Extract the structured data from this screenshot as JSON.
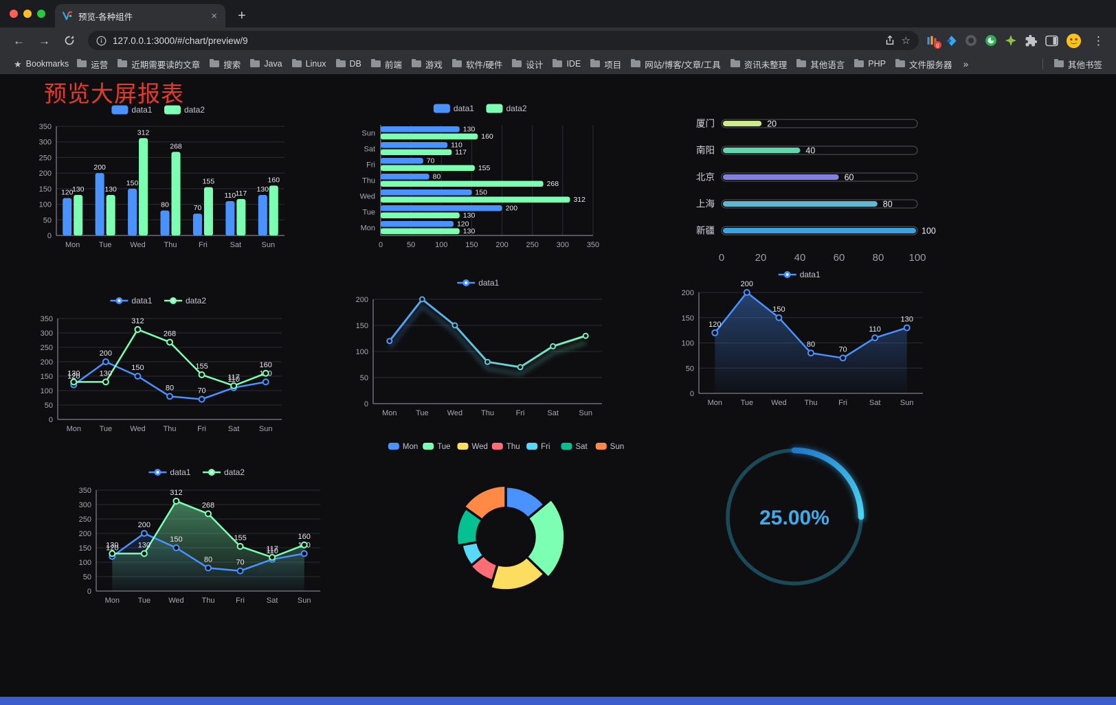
{
  "browser": {
    "tab_title": "预览-各种组件",
    "url": "127.0.0.1:3000/#/chart/preview/9",
    "extension_badge": "g",
    "bookmarks_bar": {
      "label": "Bookmarks",
      "folders": [
        "运营",
        "近期需要读的文章",
        "搜索",
        "Java",
        "Linux",
        "DB",
        "前端",
        "游戏",
        "软件/硬件",
        "设计",
        "IDE",
        "项目",
        "网站/博客/文章/工具",
        "资讯未整理",
        "其他语言",
        "PHP",
        "文件服务器"
      ],
      "overflow": "»",
      "other": "其他书签"
    }
  },
  "icons": {
    "back": "←",
    "forward": "→",
    "new_tab": "+",
    "close_tab": "×",
    "menu_dots": "⋮",
    "bookmark_star": "☆",
    "bookmarks_star": "★"
  },
  "page": {
    "title": "预览大屏报表",
    "title_color": "#e23b2b",
    "background": "#0e0e11",
    "accent_bottom_bar": "#3a5ccc"
  },
  "chart_data": [
    {
      "id": "grouped-bar",
      "type": "bar",
      "categories": [
        "Mon",
        "Tue",
        "Wed",
        "Thu",
        "Fri",
        "Sat",
        "Sun"
      ],
      "series": [
        {
          "name": "data1",
          "color": "#4992ff",
          "values": [
            120,
            200,
            150,
            80,
            70,
            110,
            130
          ],
          "labels": true
        },
        {
          "name": "data2",
          "color": "#7cffb2",
          "values": [
            130,
            130,
            312,
            268,
            155,
            117,
            160
          ],
          "labels": true
        }
      ],
      "ylim": [
        0,
        350
      ],
      "ystep": 50,
      "legend_position": "top"
    },
    {
      "id": "grouped-horizontal-bar",
      "type": "bar-horizontal",
      "categories": [
        "Mon",
        "Tue",
        "Wed",
        "Thu",
        "Fri",
        "Sat",
        "Sun"
      ],
      "series": [
        {
          "name": "data1",
          "color": "#4992ff",
          "values": [
            120,
            200,
            150,
            80,
            70,
            110,
            130
          ],
          "labels": true
        },
        {
          "name": "data2",
          "color": "#7cffb2",
          "values": [
            130,
            130,
            312,
            268,
            155,
            117,
            160
          ],
          "labels": true
        }
      ],
      "xlim": [
        0,
        350
      ],
      "xstep": 50,
      "legend_position": "top"
    },
    {
      "id": "capsule-progress",
      "type": "capsule",
      "items": [
        {
          "label": "厦门",
          "value": 20,
          "color": "#cdeb8b"
        },
        {
          "label": "南阳",
          "value": 40,
          "color": "#5fd6ac"
        },
        {
          "label": "北京",
          "value": 60,
          "color": "#8381de"
        },
        {
          "label": "上海",
          "value": 80,
          "color": "#62b8d1"
        },
        {
          "label": "新疆",
          "value": 100,
          "color": "#3aa3dd"
        }
      ],
      "max": 100,
      "ticks": [
        0,
        20,
        40,
        60,
        80,
        100
      ]
    },
    {
      "id": "two-series-line",
      "type": "line",
      "categories": [
        "Mon",
        "Tue",
        "Wed",
        "Thu",
        "Fri",
        "Sat",
        "Sun"
      ],
      "series": [
        {
          "name": "data1",
          "color": "#4992ff",
          "values": [
            120,
            200,
            150,
            80,
            70,
            110,
            130
          ],
          "labels": true
        },
        {
          "name": "data2",
          "color": "#7cffb2",
          "values": [
            130,
            130,
            312,
            268,
            155,
            117,
            160
          ],
          "labels": true
        }
      ],
      "ylim": [
        0,
        350
      ],
      "ystep": 50,
      "legend_position": "top"
    },
    {
      "id": "gradient-line",
      "type": "line-gradient",
      "categories": [
        "Mon",
        "Tue",
        "Wed",
        "Thu",
        "Fri",
        "Sat",
        "Sun"
      ],
      "series": [
        {
          "name": "data1",
          "values": [
            120,
            200,
            150,
            80,
            70,
            110,
            130
          ]
        }
      ],
      "gradient": [
        "#4992ff",
        "#7cffb2"
      ],
      "ylim": [
        0,
        200
      ],
      "ystep": 50,
      "legend_position": "top"
    },
    {
      "id": "area-line",
      "type": "line",
      "categories": [
        "Mon",
        "Tue",
        "Wed",
        "Thu",
        "Fri",
        "Sat",
        "Sun"
      ],
      "series": [
        {
          "name": "data1",
          "color": "#4992ff",
          "values": [
            120,
            200,
            150,
            80,
            70,
            110,
            130
          ],
          "labels": true,
          "area": true,
          "area_opacity": 0.4
        }
      ],
      "ylim": [
        0,
        200
      ],
      "ystep": 50,
      "legend_position": "top"
    },
    {
      "id": "two-series-area-line",
      "type": "line",
      "categories": [
        "Mon",
        "Tue",
        "Wed",
        "Thu",
        "Fri",
        "Sat",
        "Sun"
      ],
      "series": [
        {
          "name": "data1",
          "color": "#4992ff",
          "values": [
            120,
            200,
            150,
            80,
            70,
            110,
            130
          ],
          "labels": true,
          "area": true,
          "area_opacity": 0.15
        },
        {
          "name": "data2",
          "color": "#7cffb2",
          "values": [
            130,
            130,
            312,
            268,
            155,
            117,
            160
          ],
          "labels": true,
          "area": true,
          "area_opacity": 0.45
        }
      ],
      "ylim": [
        0,
        350
      ],
      "ystep": 50,
      "legend_position": "top"
    },
    {
      "id": "rose-donut",
      "type": "pie-rose",
      "items": [
        {
          "name": "Mon",
          "value": 120,
          "color": "#4992ff"
        },
        {
          "name": "Tue",
          "value": 200,
          "color": "#7cffb2"
        },
        {
          "name": "Wed",
          "value": 150,
          "color": "#fddd60"
        },
        {
          "name": "Thu",
          "value": 80,
          "color": "#ff6e76"
        },
        {
          "name": "Fri",
          "value": 70,
          "color": "#58d9f9"
        },
        {
          "name": "Sat",
          "value": 110,
          "color": "#05c091"
        },
        {
          "name": "Sun",
          "value": 130,
          "color": "#ff8a45"
        }
      ],
      "legend_position": "top"
    },
    {
      "id": "gauge",
      "type": "gauge",
      "value": 25,
      "max": 100,
      "label": "25.00%",
      "color_start": "#2277c9",
      "color_end": "#4ad4f2",
      "text_color": "#3fabe8",
      "track_color": "#1a4a58"
    }
  ]
}
